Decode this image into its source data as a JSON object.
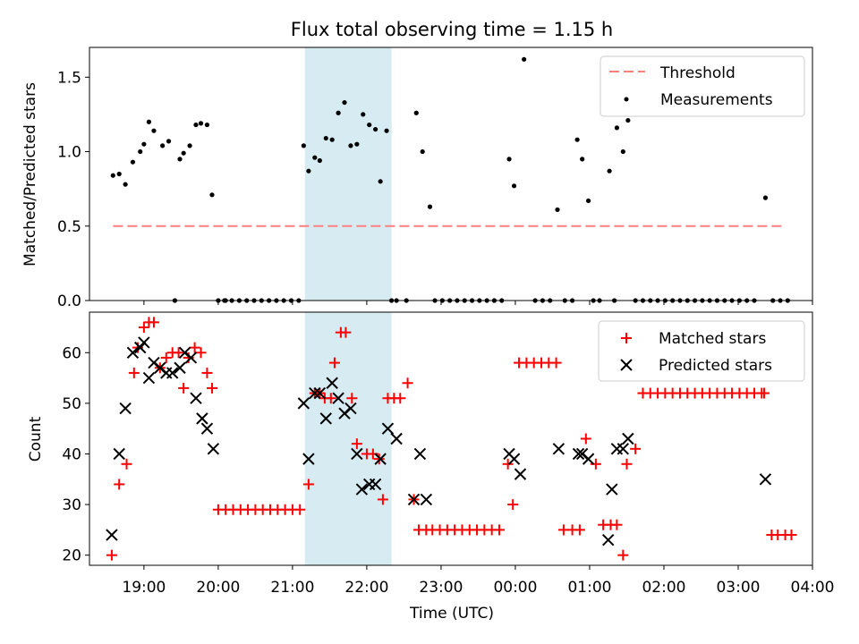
{
  "chart_data": [
    {
      "type": "scatter",
      "title": "Flux total observing time = 1.15 h",
      "xlabel": "",
      "ylabel": "Matched/Predicted stars",
      "xlim": [
        "18:16",
        "04:00"
      ],
      "ylim": [
        0,
        1.7
      ],
      "yticks": [
        "0.0",
        "0.5",
        "1.0",
        "1.5"
      ],
      "highlight_span": [
        "21:10",
        "22:20"
      ],
      "grid": false,
      "legend_position": "top-right",
      "series": [
        {
          "name": "Threshold",
          "style": "dashed-line",
          "color": "#ff7f7f",
          "x": [
            "18:35",
            "03:35"
          ],
          "y": [
            0.5,
            0.5
          ]
        },
        {
          "name": "Measurements",
          "style": "dot",
          "color": "#000000",
          "x": [
            "18:35",
            "18:40",
            "18:45",
            "18:51",
            "18:57",
            "19:00",
            "19:04",
            "19:08",
            "19:15",
            "19:20",
            "19:29",
            "19:32",
            "19:37",
            "19:42",
            "19:46",
            "19:51",
            "19:55",
            "20:00",
            "20:06",
            "21:09",
            "21:13",
            "21:18",
            "21:22",
            "21:27",
            "21:32",
            "21:37",
            "21:42",
            "21:47",
            "21:52",
            "21:57",
            "22:02",
            "22:07",
            "22:11",
            "22:16",
            "22:20",
            "22:40",
            "22:45",
            "22:51",
            "23:55",
            "23:59",
            "00:07",
            "00:34",
            "00:50",
            "00:54",
            "00:59",
            "01:08",
            "01:16",
            "01:22",
            "01:27",
            "01:31"
          ],
          "y": [
            0.84,
            0.85,
            0.78,
            0.93,
            1.0,
            1.05,
            1.2,
            1.14,
            1.04,
            1.07,
            0.95,
            0.99,
            1.04,
            1.18,
            1.19,
            1.18,
            0.71,
            0.0,
            0.0,
            1.04,
            0.87,
            0.96,
            0.94,
            1.09,
            1.08,
            1.26,
            1.33,
            1.04,
            1.05,
            1.25,
            1.18,
            1.15,
            0.8,
            1.14,
            0.0,
            1.26,
            1.0,
            0.63,
            0.95,
            0.77,
            1.62,
            0.61,
            1.08,
            0.95,
            0.67,
            0.0,
            0.87,
            1.16,
            1.0,
            1.21
          ],
          "extra_points_x": [
            "03:22"
          ],
          "extra_points_y": [
            0.69
          ],
          "zero_points_x": [
            "19:25",
            "20:05",
            "20:11",
            "20:17",
            "20:23",
            "20:29",
            "20:35",
            "20:41",
            "20:47",
            "20:53",
            "20:59",
            "21:05",
            "22:24",
            "22:32",
            "22:55",
            "23:01",
            "23:07",
            "23:13",
            "23:19",
            "23:25",
            "23:31",
            "23:37",
            "23:43",
            "23:49",
            "00:16",
            "00:22",
            "00:28",
            "00:40",
            "00:46",
            "01:03",
            "01:20",
            "01:37",
            "01:43",
            "01:49",
            "01:55",
            "02:01",
            "02:07",
            "02:13",
            "02:19",
            "02:25",
            "02:31",
            "02:37",
            "02:43",
            "02:49",
            "02:55",
            "03:01",
            "03:07",
            "03:13",
            "03:28",
            "03:34",
            "03:40"
          ]
        }
      ]
    },
    {
      "type": "scatter",
      "title": "",
      "xlabel": "Time (UTC)",
      "ylabel": "Count",
      "xlim": [
        "18:16",
        "04:00"
      ],
      "ylim": [
        18,
        68
      ],
      "yticks": [
        "20",
        "30",
        "40",
        "50",
        "60"
      ],
      "xticks": [
        "19:00",
        "20:00",
        "21:00",
        "22:00",
        "23:00",
        "00:00",
        "01:00",
        "02:00",
        "03:00",
        "04:00"
      ],
      "highlight_span": [
        "21:10",
        "22:20"
      ],
      "grid": false,
      "legend_position": "top-right",
      "series": [
        {
          "name": "Matched stars",
          "marker": "plus",
          "color": "#ff0000",
          "x": [
            "18:34",
            "18:40",
            "18:46",
            "18:52",
            "18:55",
            "19:00",
            "19:04",
            "19:08",
            "19:13",
            "19:18",
            "19:23",
            "19:28",
            "19:32",
            "19:36",
            "19:41",
            "19:46",
            "19:51",
            "19:55",
            "20:00",
            "20:06",
            "20:12",
            "20:18",
            "20:24",
            "20:30",
            "20:36",
            "20:42",
            "20:48",
            "20:54",
            "21:00",
            "21:06",
            "21:13",
            "21:18",
            "21:22",
            "21:26",
            "21:31",
            "21:34",
            "21:39",
            "21:43",
            "21:48",
            "21:52",
            "22:00",
            "22:05",
            "22:10",
            "22:13",
            "22:17",
            "22:22",
            "22:27",
            "22:33",
            "22:38",
            "22:42",
            "22:48",
            "22:53",
            "22:59",
            "23:05",
            "23:11",
            "23:17",
            "23:23",
            "23:29",
            "23:35",
            "23:41",
            "23:47",
            "23:54",
            "23:58",
            "00:03",
            "00:09",
            "00:15",
            "00:21",
            "00:27",
            "00:33",
            "00:39",
            "00:46",
            "00:52",
            "00:57",
            "01:05",
            "01:11",
            "01:17",
            "01:22",
            "01:27",
            "01:30",
            "01:37",
            "01:43",
            "01:49",
            "01:55",
            "02:01",
            "02:07",
            "02:13",
            "02:19",
            "02:25",
            "02:31",
            "02:37",
            "02:43",
            "02:49",
            "02:55",
            "03:01",
            "03:07",
            "03:13",
            "03:19",
            "03:21",
            "03:27",
            "03:32",
            "03:38",
            "03:43"
          ],
          "y": [
            20,
            34,
            38,
            56,
            61,
            65,
            66,
            66,
            57,
            59,
            60,
            60,
            53,
            59,
            61,
            60,
            56,
            53,
            29,
            29,
            29,
            29,
            29,
            29,
            29,
            29,
            29,
            29,
            29,
            29,
            34,
            52,
            52,
            51,
            51,
            58,
            64,
            64,
            51,
            42,
            40,
            40,
            39,
            31,
            51,
            51,
            51,
            54,
            31,
            25,
            25,
            25,
            25,
            25,
            25,
            25,
            25,
            25,
            25,
            25,
            25,
            38,
            30,
            58,
            58,
            58,
            58,
            58,
            58,
            25,
            25,
            25,
            43,
            38,
            26,
            26,
            26,
            20,
            38,
            41,
            52,
            52,
            52,
            52,
            52,
            52,
            52,
            52,
            52,
            52,
            52,
            52,
            52,
            52,
            52,
            52,
            52,
            52,
            24,
            24,
            24,
            24
          ]
        },
        {
          "name": "Predicted stars",
          "marker": "x",
          "color": "#000000",
          "x": [
            "18:34",
            "18:40",
            "18:45",
            "18:51",
            "18:57",
            "19:00",
            "19:04",
            "19:08",
            "19:13",
            "19:18",
            "19:23",
            "19:29",
            "19:33",
            "19:38",
            "19:42",
            "19:47",
            "19:51",
            "19:56",
            "21:09",
            "21:13",
            "21:18",
            "21:22",
            "21:27",
            "21:32",
            "21:37",
            "21:42",
            "21:47",
            "21:52",
            "21:56",
            "22:02",
            "22:07",
            "22:11",
            "22:17",
            "22:24",
            "22:38",
            "22:43",
            "22:48",
            "23:55",
            "23:59",
            "00:04",
            "00:35",
            "00:51",
            "00:54",
            "00:59",
            "01:15",
            "01:18",
            "01:22",
            "01:27",
            "01:31",
            "03:22"
          ],
          "y": [
            24,
            40,
            49,
            60,
            61,
            62,
            55,
            58,
            57,
            56,
            56,
            57,
            60,
            59,
            51,
            47,
            45,
            41,
            50,
            39,
            52,
            52,
            47,
            54,
            51,
            48,
            49,
            40,
            33,
            34,
            34,
            39,
            45,
            43,
            31,
            40,
            31,
            40,
            39,
            36,
            41,
            40,
            40,
            39,
            23,
            33,
            41,
            41,
            43,
            35
          ]
        }
      ]
    }
  ]
}
